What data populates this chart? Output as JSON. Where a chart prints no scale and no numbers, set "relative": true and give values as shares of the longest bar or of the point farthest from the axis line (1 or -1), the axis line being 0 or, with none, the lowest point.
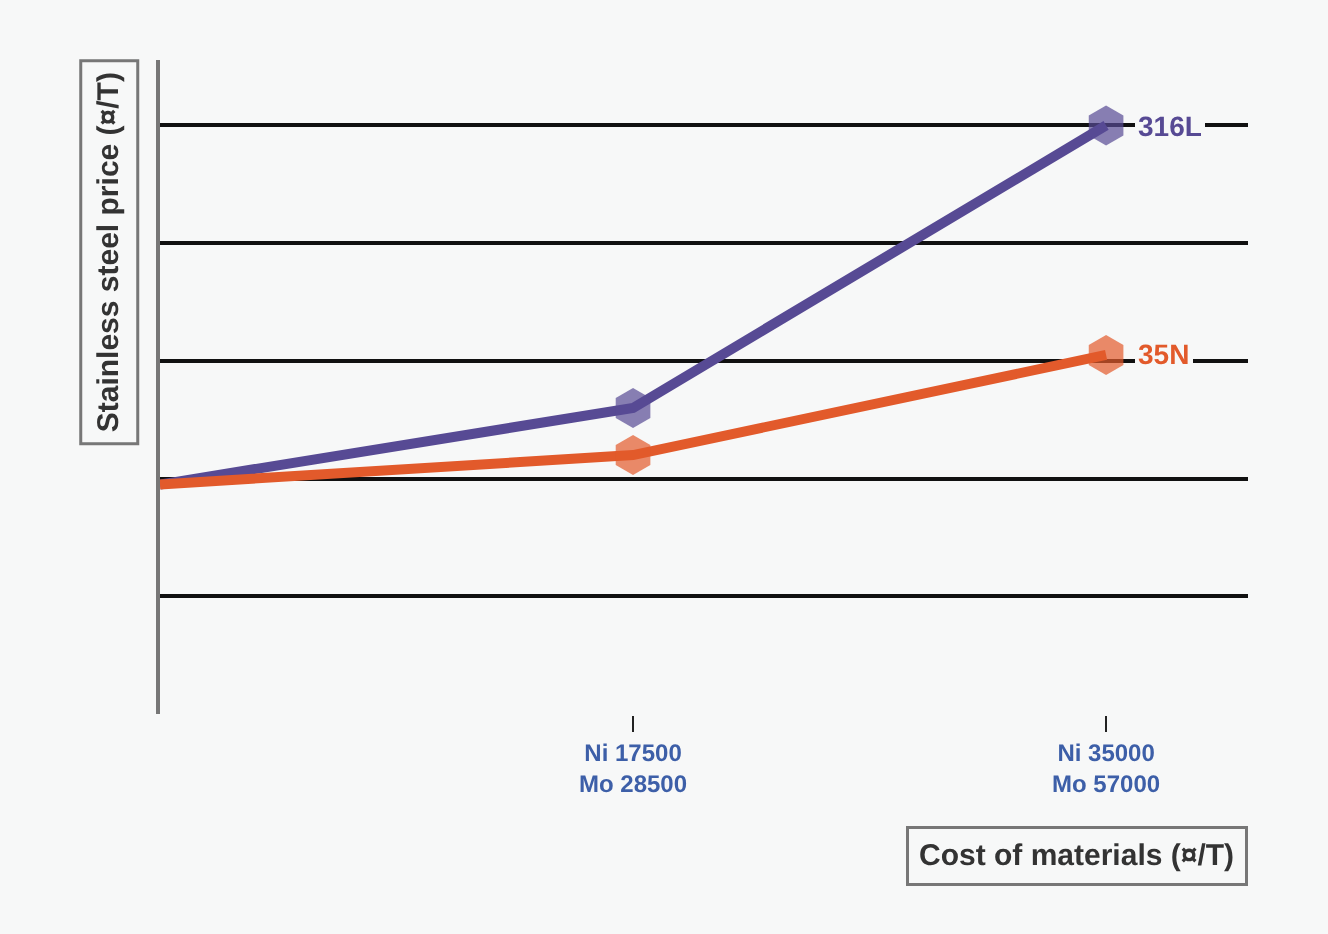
{
  "chart_data": {
    "type": "line",
    "relative": true,
    "xlabel": "Cost of materials (¤/T)",
    "ylabel": "Stainless steel price (¤/T)",
    "categories": [
      null,
      "Ni 17500\nMo 28500",
      "Ni 35000\nMo 57000"
    ],
    "series": [
      {
        "name": "316L",
        "color": "#574a94",
        "values": [
          0.39,
          0.52,
          1
        ]
      },
      {
        "name": "35N",
        "color": "#e25a2b",
        "values": [
          0.39,
          0.44,
          0.61
        ]
      }
    ],
    "grid": "y",
    "legend": false
  }
}
